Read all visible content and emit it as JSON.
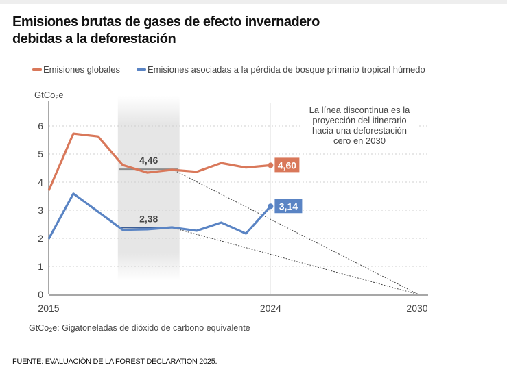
{
  "title_line1": "Emisiones brutas de gases de efecto invernadero",
  "title_line2": "debidas a la deforestación",
  "legend": [
    {
      "label": "Emisiones globales",
      "color": "#D9785A"
    },
    {
      "label": "Emisiones asociadas a la pérdida de bosque primario tropical húmedo",
      "color": "#5A84C4"
    }
  ],
  "y_unit_prefix": "GtCo",
  "y_unit_sub": "2",
  "y_unit_suffix": "e",
  "units_note_prefix": "GtCo",
  "units_note_sub": "2",
  "units_note_suffix": "e: Gigatoneladas de dióxido de carbono equivalente",
  "source": "FUENTE: EVALUACIÓN DE LA FOREST DECLARATION 2025.",
  "chart_data": {
    "type": "line",
    "title": "Emisiones brutas de gases de efecto invernadero debidas a la deforestación",
    "ylabel": "GtCO2e",
    "xlabel": "",
    "x": [
      2015,
      2016,
      2017,
      2018,
      2019,
      2020,
      2021,
      2022,
      2023,
      2024
    ],
    "xlim": [
      2015,
      2030
    ],
    "ylim": [
      0,
      6.6
    ],
    "yticks": [
      0,
      1,
      2,
      3,
      4,
      5,
      6
    ],
    "xticks": [
      2015,
      2024,
      2030
    ],
    "grid": true,
    "legend_position": "top-left",
    "series": [
      {
        "name": "Emisiones globales",
        "color": "#D9785A",
        "values": [
          3.7,
          5.73,
          5.63,
          4.61,
          4.34,
          4.44,
          4.37,
          4.68,
          4.52,
          4.6
        ]
      },
      {
        "name": "Emisiones asociadas a la pérdida de bosque primario tropical húmedo",
        "color": "#5A84C4",
        "values": [
          1.98,
          3.59,
          2.95,
          2.3,
          2.32,
          2.39,
          2.27,
          2.56,
          2.17,
          3.14
        ]
      }
    ],
    "baseline_band": {
      "from": 2018,
      "to": 2020
    },
    "baselines": [
      {
        "series": "Emisiones globales",
        "value": 4.46,
        "label": "4,46"
      },
      {
        "series": "Emisiones asociadas a la pérdida de bosque primario tropical húmedo",
        "value": 2.38,
        "label": "2,38"
      }
    ],
    "projection": {
      "from_year": 2020,
      "to_year": 2030,
      "to_value": 0,
      "style": "dashed"
    },
    "end_labels": [
      {
        "series": "Emisiones globales",
        "label": "4,60",
        "year": 2024
      },
      {
        "series": "Emisiones asociadas a la pérdida de bosque primario tropical húmedo",
        "label": "3,14",
        "year": 2024
      }
    ],
    "annotation": [
      "La línea discontinua es la",
      "proyección del itinerario",
      "hacia una deforestación",
      "cero en 2030"
    ]
  }
}
